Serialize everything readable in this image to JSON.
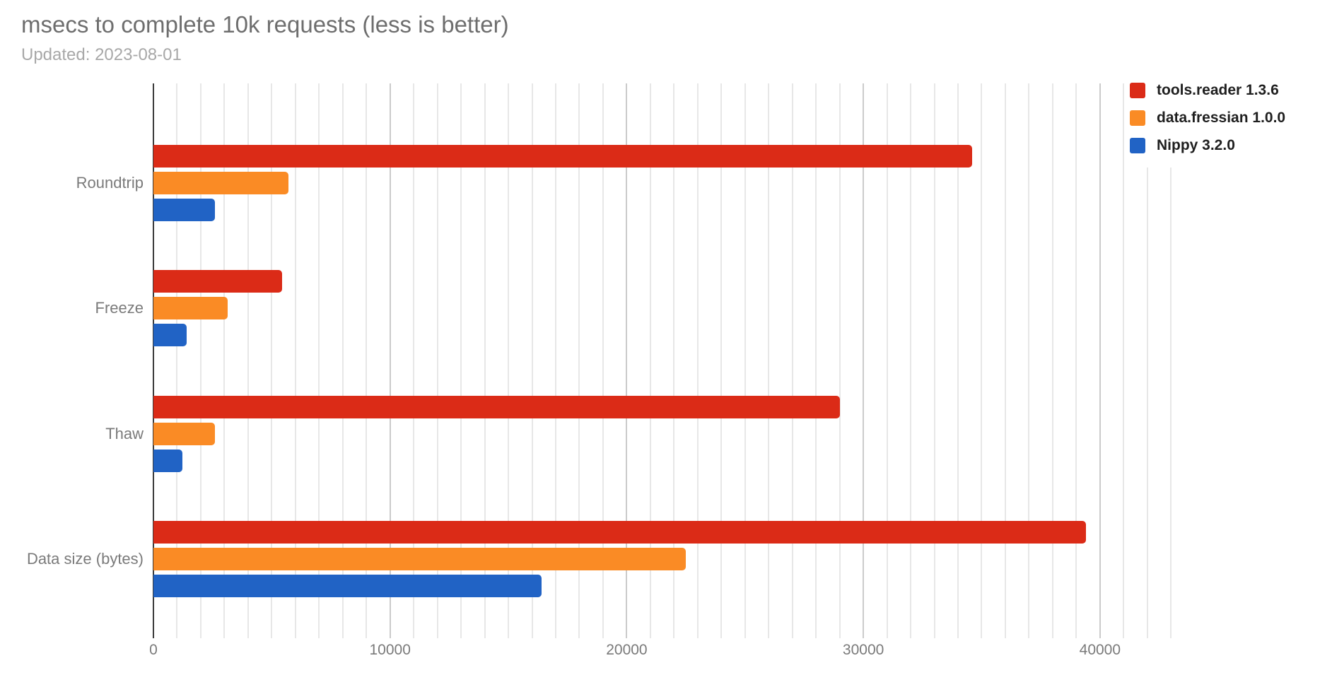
{
  "chart_data": {
    "type": "bar",
    "orientation": "horizontal",
    "title": "msecs to complete 10k requests (less is better)",
    "subtitle": "Updated: 2023-08-01",
    "categories": [
      "Roundtrip",
      "Freeze",
      "Thaw",
      "Data size (bytes)"
    ],
    "series": [
      {
        "name": "tools.reader 1.3.6",
        "color": "#db2b17",
        "values": [
          34600,
          5440,
          29000,
          39400
        ]
      },
      {
        "name": "data.fressian 1.0.0",
        "color": "#fa8b25",
        "values": [
          5700,
          3150,
          2600,
          22500
        ]
      },
      {
        "name": "Nippy 3.2.0",
        "color": "#2163c5",
        "values": [
          2600,
          1410,
          1230,
          16400
        ]
      }
    ],
    "x_axis": {
      "min": 0,
      "max": 43500,
      "ticks": [
        0,
        10000,
        20000,
        30000,
        40000
      ],
      "tick_labels": [
        "0",
        "10000",
        "20000",
        "30000",
        "40000"
      ],
      "minor_gridline_step": 1000,
      "major_gridline_step": 10000
    },
    "grid": true,
    "legend_position": "top-right",
    "colors": {
      "title_text": "#6e6e6e",
      "subtitle_text": "#a8a8a8",
      "axis_tick_text": "#7a7a7a",
      "category_text": "#7a7a7a",
      "legend_text": "#1f1f1f",
      "gridline_minor": "#e7e7e7",
      "gridline_major": "#cbcbcb",
      "zero_axis_line": "#3b3b3b",
      "background": "#ffffff"
    }
  }
}
